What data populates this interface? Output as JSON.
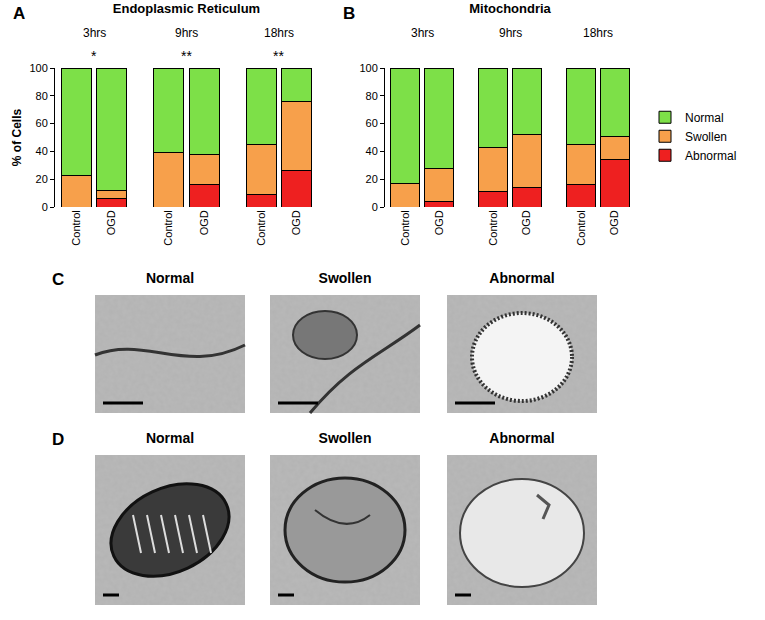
{
  "chart_data": [
    {
      "type": "bar",
      "stacked": true,
      "panel": "A",
      "title": "Endoplasmic Reticulum",
      "y_label": "% of Cells",
      "categories": [
        "Control",
        "OGD",
        "Control",
        "OGD",
        "Control",
        "OGD"
      ],
      "groups": [
        "3hrs",
        "9hrs",
        "18hrs"
      ],
      "group_annotations": [
        "*",
        "**",
        "**"
      ],
      "series": [
        {
          "name": "Abnormal",
          "color": "#ee2020",
          "values": [
            0,
            6,
            0,
            16,
            9,
            26
          ]
        },
        {
          "name": "Swollen",
          "color": "#f7a04b",
          "values": [
            23,
            6,
            39,
            22,
            36,
            50
          ]
        },
        {
          "name": "Normal",
          "color": "#7de048",
          "values": [
            77,
            88,
            61,
            62,
            55,
            24
          ]
        }
      ],
      "ylim": [
        0,
        100
      ],
      "yticks": [
        0,
        20,
        40,
        60,
        80,
        100
      ],
      "grid": false
    },
    {
      "type": "bar",
      "stacked": true,
      "panel": "B",
      "title": "Mitochondria",
      "categories": [
        "Control",
        "OGD",
        "Control",
        "OGD",
        "Control",
        "OGD"
      ],
      "groups": [
        "3hrs",
        "9hrs",
        "18hrs"
      ],
      "series": [
        {
          "name": "Abnormal",
          "color": "#ee2020",
          "values": [
            0,
            4,
            11,
            14,
            16,
            34
          ]
        },
        {
          "name": "Swollen",
          "color": "#f7a04b",
          "values": [
            17,
            24,
            32,
            38,
            29,
            17
          ]
        },
        {
          "name": "Normal",
          "color": "#7de048",
          "values": [
            83,
            72,
            57,
            48,
            55,
            49
          ]
        }
      ],
      "ylim": [
        0,
        100
      ],
      "yticks": [
        0,
        20,
        40,
        60,
        80,
        100
      ],
      "grid": false,
      "legend": "right"
    }
  ],
  "micrographs": [
    {
      "panel": "C",
      "titles": [
        "Normal",
        "Swollen",
        "Abnormal"
      ]
    },
    {
      "panel": "D",
      "titles": [
        "Normal",
        "Swollen",
        "Abnormal"
      ]
    }
  ]
}
